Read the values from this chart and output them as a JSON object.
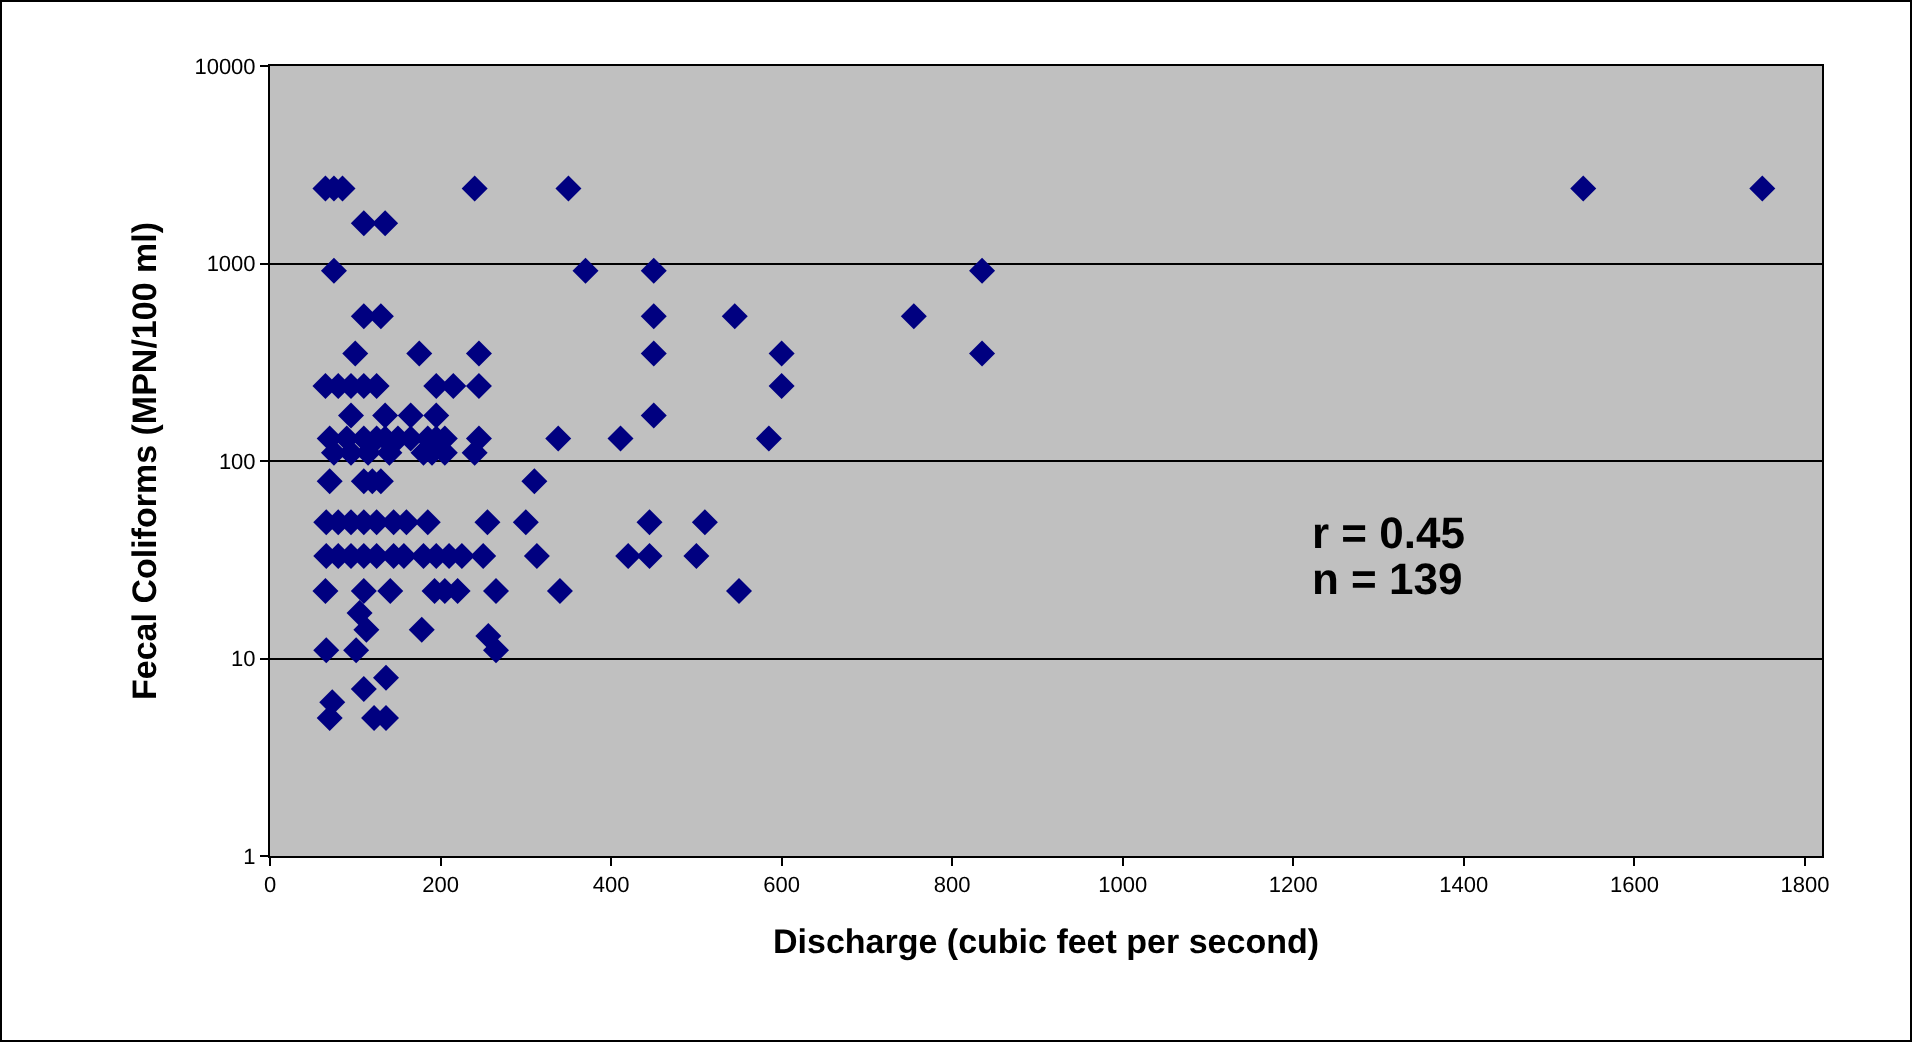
{
  "chart_data": {
    "type": "scatter",
    "xlabel": "Discharge (cubic feet per second)",
    "ylabel": "Fecal Coliforms (MPN/100 ml)",
    "annotations": [
      "r = 0.45",
      "n = 139"
    ],
    "x": [
      65,
      75,
      85,
      240,
      350,
      1540,
      1750,
      110,
      135,
      75,
      370,
      450,
      835,
      110,
      130,
      450,
      545,
      755,
      100,
      175,
      245,
      450,
      600,
      835,
      65,
      80,
      95,
      110,
      125,
      195,
      215,
      245,
      600,
      95,
      135,
      165,
      195,
      450,
      70,
      90,
      110,
      125,
      135,
      150,
      165,
      185,
      195,
      205,
      245,
      338,
      411,
      585,
      75,
      95,
      115,
      140,
      180,
      190,
      205,
      240,
      70,
      110,
      120,
      130,
      310,
      66,
      80,
      95,
      110,
      125,
      145,
      160,
      185,
      255,
      300,
      445,
      510,
      66,
      80,
      95,
      110,
      125,
      145,
      157,
      180,
      195,
      210,
      225,
      250,
      313,
      420,
      445,
      500,
      65,
      110,
      141,
      193,
      205,
      220,
      265,
      340,
      550,
      105,
      113,
      178,
      256,
      66,
      101,
      265,
      136,
      110,
      73,
      70,
      122,
      136
    ],
    "values": [
      2400,
      2400,
      2400,
      2400,
      2400,
      2400,
      2400,
      1600,
      1600,
      920,
      920,
      920,
      920,
      540,
      540,
      540,
      540,
      540,
      350,
      350,
      350,
      350,
      350,
      350,
      240,
      240,
      240,
      240,
      240,
      240,
      240,
      240,
      240,
      170,
      170,
      170,
      170,
      170,
      130,
      130,
      130,
      130,
      130,
      130,
      130,
      130,
      130,
      130,
      130,
      130,
      130,
      130,
      110,
      110,
      110,
      110,
      110,
      110,
      110,
      110,
      79,
      79,
      79,
      79,
      79,
      49,
      49,
      49,
      49,
      49,
      49,
      49,
      49,
      49,
      49,
      49,
      49,
      33,
      33,
      33,
      33,
      33,
      33,
      33,
      33,
      33,
      33,
      33,
      33,
      33,
      33,
      33,
      33,
      22,
      22,
      22,
      22,
      22,
      22,
      22,
      22,
      22,
      17,
      14,
      14,
      13,
      11,
      11,
      11,
      8,
      7,
      6,
      5,
      5,
      5
    ],
    "color": "#000080",
    "marker": "diamond",
    "xlim": [
      0,
      1820
    ],
    "xticks": [
      0,
      200,
      400,
      600,
      800,
      1000,
      1200,
      1400,
      1600,
      1800
    ],
    "ylim": [
      1,
      10000
    ],
    "yticks": [
      1,
      10,
      100,
      1000,
      10000
    ],
    "log": true,
    "grid": "y"
  }
}
